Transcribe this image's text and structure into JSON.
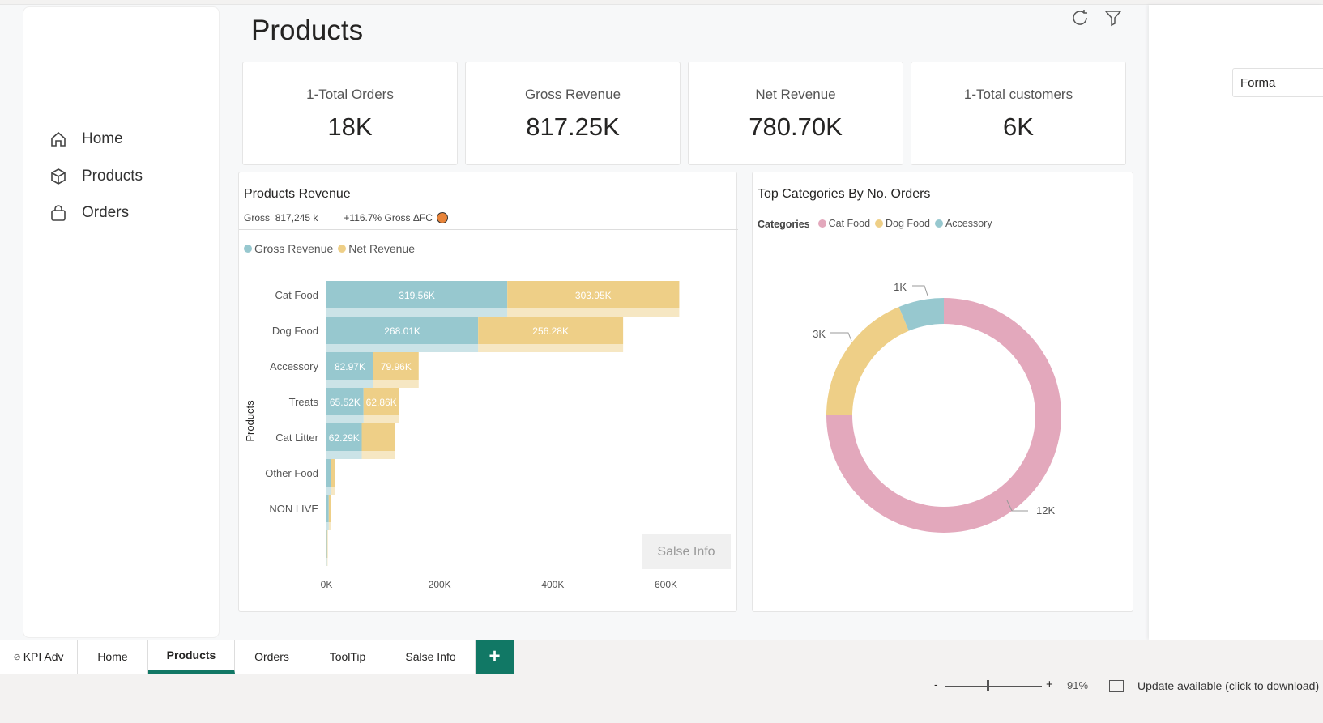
{
  "page": {
    "title": "Products"
  },
  "sidebar": {
    "items": [
      {
        "label": "Home",
        "icon": "home-icon"
      },
      {
        "label": "Products",
        "icon": "cube-icon"
      },
      {
        "label": "Orders",
        "icon": "bag-icon"
      }
    ]
  },
  "kpis": [
    {
      "label": "1-Total Orders",
      "value": "18K"
    },
    {
      "label": "Gross Revenue",
      "value": "817.25K"
    },
    {
      "label": "Net Revenue",
      "value": "780.70K"
    },
    {
      "label": "1-Total customers",
      "value": "6K"
    }
  ],
  "format_panel": {
    "label": "Forma"
  },
  "revenue_card": {
    "title": "Products Revenue",
    "gross_label": "Gross",
    "gross_value": "817,245 k",
    "delta": "+116.7% Gross ΔFC",
    "delta_color": "#e8843a",
    "button": "Salse Info"
  },
  "categories_card": {
    "title": "Top Categories By No. Orders",
    "legend_title": "Categories"
  },
  "chart_data": [
    {
      "type": "bar",
      "orientation": "horizontal",
      "stacked": true,
      "ylabel": "Products",
      "xlabel": "",
      "categories": [
        "Cat Food",
        "Dog Food",
        "Accessory",
        "Treats",
        "Cat Litter",
        "Other Food",
        "NON LIVE",
        ""
      ],
      "series": [
        {
          "name": "Gross Revenue",
          "color": "#97c8cf",
          "values": [
            319.56,
            268.01,
            82.97,
            65.52,
            62.29,
            8,
            4,
            1
          ],
          "labels": [
            "319.56K",
            "268.01K",
            "82.97K",
            "65.52K",
            "62.29K",
            "",
            "",
            ""
          ]
        },
        {
          "name": "Net Revenue",
          "color": "#eecf87",
          "values": [
            303.95,
            256.28,
            79.96,
            62.86,
            59,
            7,
            4,
            1
          ],
          "labels": [
            "303.95K",
            "256.28K",
            "79.96K",
            "62.86K",
            "",
            "",
            "",
            ""
          ]
        }
      ],
      "xticks": [
        "0K",
        "200K",
        "400K",
        "600K"
      ],
      "xlim": [
        0,
        650
      ],
      "unit": "K"
    },
    {
      "type": "pie",
      "hole": true,
      "categories": [
        "Cat Food",
        "Dog Food",
        "Accessory"
      ],
      "values": [
        12,
        3,
        1
      ],
      "labels": [
        "12K",
        "3K",
        "1K"
      ],
      "colors": [
        "#e3a8bc",
        "#eecf87",
        "#97c8cf"
      ]
    }
  ],
  "tabs": [
    {
      "label": "KPI Adv"
    },
    {
      "label": "Home"
    },
    {
      "label": "Products",
      "active": true
    },
    {
      "label": "Orders"
    },
    {
      "label": "ToolTip"
    },
    {
      "label": "Salse Info"
    }
  ],
  "add_tab": "+",
  "status": {
    "zoom": "91%",
    "update": "Update available (click to download)",
    "minus": "-",
    "plus": "+"
  },
  "accent": "#117865"
}
